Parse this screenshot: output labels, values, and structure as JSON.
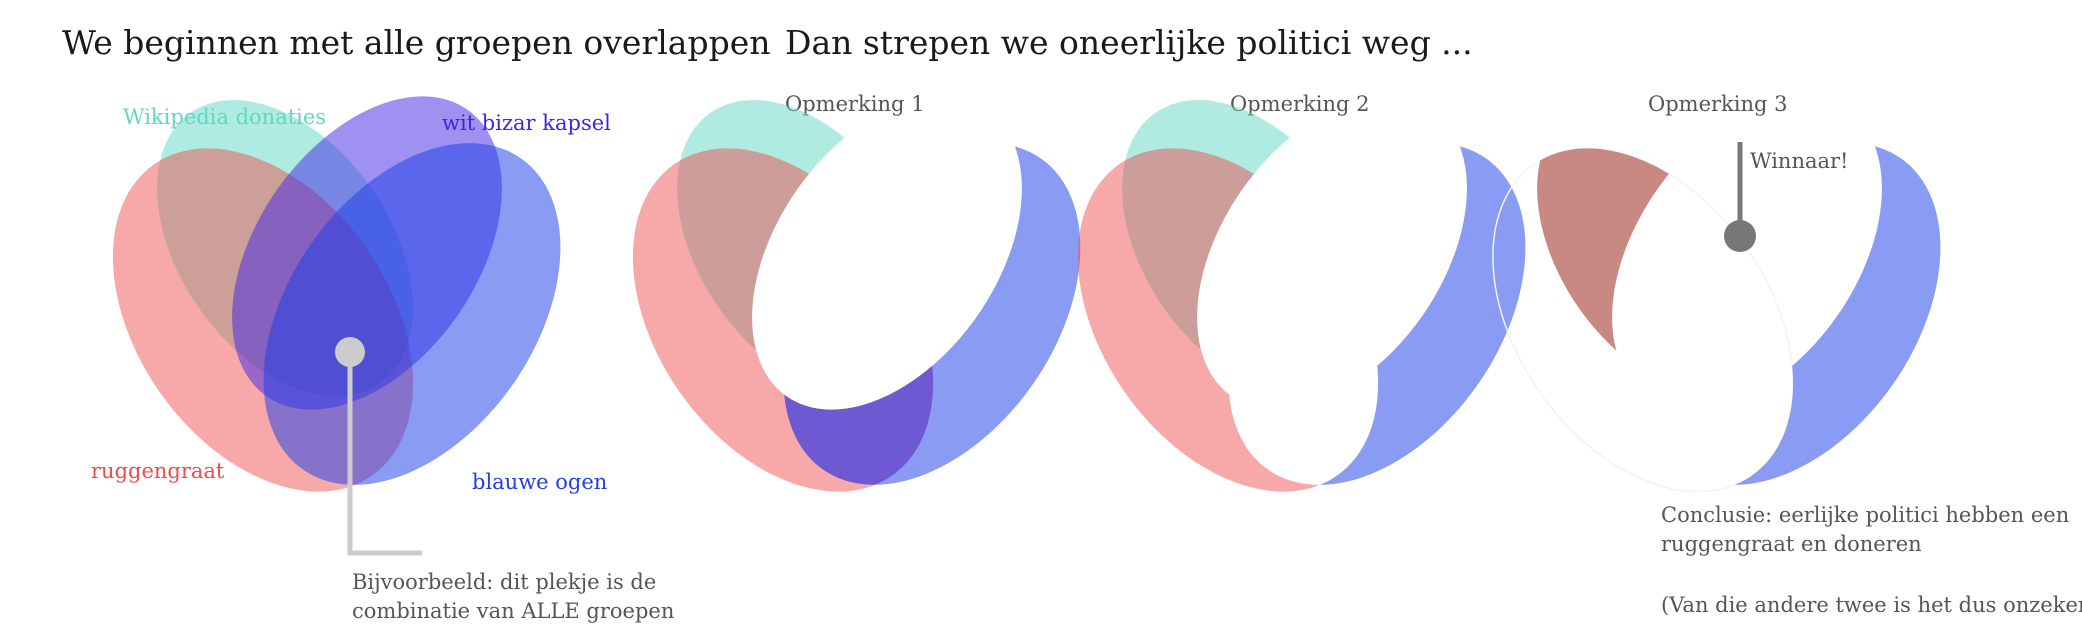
{
  "left_panel": {
    "title": "We beginnen met alle groepen overlappen",
    "groups": {
      "wikipedia": {
        "label": "Wikipedia donaties",
        "color": "#5fd8c4"
      },
      "hair": {
        "label": "wit bizar kapsel",
        "color": "#3f24e6"
      },
      "spine": {
        "label": "ruggengraat",
        "color": "#ee4b4b"
      },
      "eyes": {
        "label": "blauwe ogen",
        "color": "#1f3fe8"
      }
    },
    "callout": {
      "line1": "Bijvoorbeeld: dit plekje is de",
      "line2": "combinatie van ALLE groepen"
    }
  },
  "right_panel": {
    "title": "Dan strepen we oneerlijke politici weg ...",
    "steps": [
      {
        "label": "Opmerking 1"
      },
      {
        "label": "Opmerking 2"
      },
      {
        "label": "Opmerking 3"
      }
    ],
    "winner_label": "Winnaar!",
    "conclusion": {
      "line1": "Conclusie: eerlijke politici hebben een",
      "line2": "ruggengraat en doneren",
      "line3": "(Van die andere twee is het dus onzeker)"
    }
  },
  "colors": {
    "title_text": "#1a1a1a",
    "step_label_text": "#555555",
    "annotation_text": "#555555",
    "pointer_light": "#cccccc",
    "pointer_dark": "#777777"
  }
}
